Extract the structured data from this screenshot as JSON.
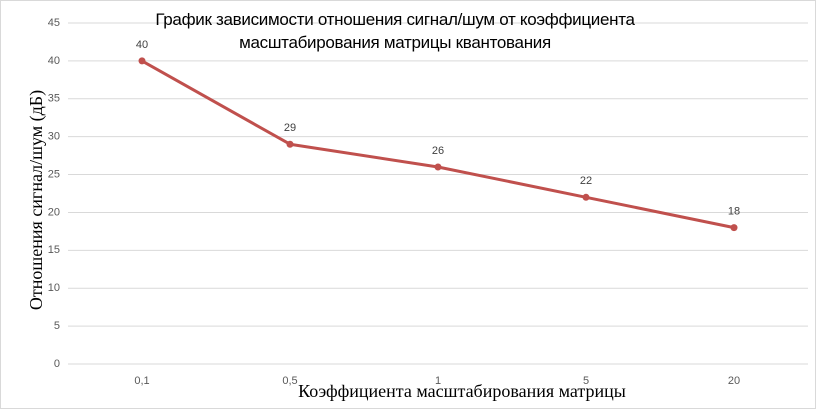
{
  "chart_data": {
    "type": "line",
    "title": "График зависимости отношения сигнал/шум от коэффициента масштабирования матрицы квантования",
    "x_label": "Коэффициента масштабирования матрицы",
    "y_label": "Отношения сигнал/шум (дБ)",
    "categories": [
      "0,1",
      "0,5",
      "1",
      "5",
      "20"
    ],
    "series": [
      {
        "name": "Отношение сигнал/шум",
        "color": "#c0504d",
        "values": [
          40,
          29,
          26,
          22,
          18
        ]
      }
    ],
    "ylim": [
      0,
      45
    ],
    "yticks": [
      0,
      5,
      10,
      15,
      20,
      25,
      30,
      35,
      40,
      45
    ],
    "grid": true,
    "legend": false
  }
}
